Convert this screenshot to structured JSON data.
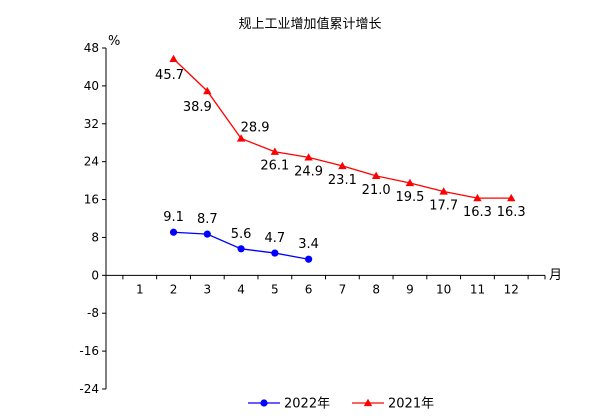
{
  "chart_data": {
    "type": "line",
    "title": "规上工业增加值累计增长",
    "ylabel": "%",
    "xlabel": "月",
    "ylim": [
      -24,
      48
    ],
    "yticks": [
      -24,
      -16,
      -8,
      0,
      8,
      16,
      24,
      32,
      40,
      48
    ],
    "xlim": [
      0,
      13
    ],
    "xticks": [
      1,
      2,
      3,
      4,
      5,
      6,
      7,
      8,
      9,
      10,
      11,
      12
    ],
    "grid": false,
    "legend_position": "bottom",
    "series": [
      {
        "name": "2022年",
        "color": "#0000ff",
        "marker": "circle",
        "x": [
          2,
          3,
          4,
          5,
          6
        ],
        "values": [
          9.1,
          8.7,
          5.6,
          4.7,
          3.4
        ],
        "labels": [
          "9.1",
          "8.7",
          "5.6",
          "4.7",
          "3.4"
        ]
      },
      {
        "name": "2021年",
        "color": "#ff0000",
        "marker": "triangle",
        "x": [
          2,
          3,
          4,
          5,
          6,
          7,
          8,
          9,
          10,
          11,
          12
        ],
        "values": [
          45.7,
          38.9,
          28.9,
          26.1,
          24.9,
          23.1,
          21.0,
          19.5,
          17.7,
          16.3,
          16.3
        ],
        "labels": [
          "45.7",
          "38.9",
          "28.9",
          "26.1",
          "24.9",
          "23.1",
          "21.0",
          "19.5",
          "17.7",
          "16.3",
          "16.3"
        ]
      }
    ]
  }
}
